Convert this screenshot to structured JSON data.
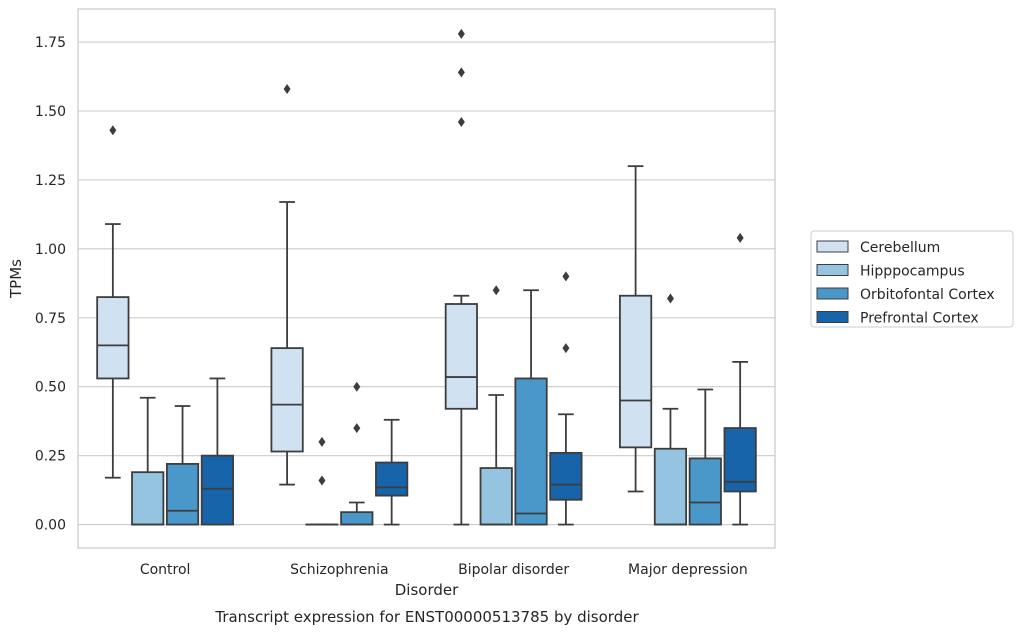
{
  "caption": "Transcript expression for ENST00000513785 by disorder",
  "chart_data": {
    "type": "boxplot",
    "xlabel": "Disorder",
    "ylabel": "TPMs",
    "ylim": [
      -0.085,
      1.87
    ],
    "yticks": [
      0.0,
      0.25,
      0.5,
      0.75,
      1.0,
      1.25,
      1.5,
      1.75
    ],
    "ytick_labels": [
      "0.00",
      "0.25",
      "0.50",
      "0.75",
      "1.00",
      "1.25",
      "1.50",
      "1.75"
    ],
    "grid": "horizontal",
    "legend_position": "right",
    "categories": [
      "Control",
      "Schizophrenia",
      "Bipolar disorder",
      "Major depression"
    ],
    "series": [
      {
        "name": "Cerebellum",
        "color": "#d0e1f2",
        "boxes": [
          {
            "whislo": 0.17,
            "q1": 0.53,
            "med": 0.65,
            "q3": 0.825,
            "whishi": 1.09,
            "fliers": [
              1.43
            ]
          },
          {
            "whislo": 0.145,
            "q1": 0.265,
            "med": 0.435,
            "q3": 0.64,
            "whishi": 1.17,
            "fliers": [
              1.58
            ]
          },
          {
            "whislo": 0.0,
            "q1": 0.42,
            "med": 0.535,
            "q3": 0.8,
            "whishi": 0.83,
            "fliers": [
              1.46,
              1.64,
              1.78
            ]
          },
          {
            "whislo": 0.12,
            "q1": 0.28,
            "med": 0.45,
            "q3": 0.83,
            "whishi": 1.3,
            "fliers": []
          }
        ]
      },
      {
        "name": "Hipppocampus",
        "color": "#94c4df",
        "boxes": [
          {
            "whislo": 0.0,
            "q1": 0.0,
            "med": 0.0,
            "q3": 0.19,
            "whishi": 0.46,
            "fliers": []
          },
          {
            "whislo": 0.0,
            "q1": 0.0,
            "med": 0.0,
            "q3": 0.0,
            "whishi": 0.0,
            "fliers": [
              0.16,
              0.3
            ]
          },
          {
            "whislo": 0.0,
            "q1": 0.0,
            "med": 0.0,
            "q3": 0.205,
            "whishi": 0.47,
            "fliers": [
              0.85
            ]
          },
          {
            "whislo": 0.0,
            "q1": 0.0,
            "med": 0.0,
            "q3": 0.275,
            "whishi": 0.42,
            "fliers": [
              0.82
            ]
          }
        ]
      },
      {
        "name": "Orbitofontal Cortex",
        "color": "#4a98c9",
        "boxes": [
          {
            "whislo": 0.0,
            "q1": 0.0,
            "med": 0.05,
            "q3": 0.22,
            "whishi": 0.43,
            "fliers": []
          },
          {
            "whislo": 0.0,
            "q1": 0.0,
            "med": 0.0,
            "q3": 0.045,
            "whishi": 0.08,
            "fliers": [
              0.35,
              0.5
            ]
          },
          {
            "whislo": 0.0,
            "q1": 0.0,
            "med": 0.04,
            "q3": 0.53,
            "whishi": 0.85,
            "fliers": []
          },
          {
            "whislo": 0.0,
            "q1": 0.0,
            "med": 0.08,
            "q3": 0.24,
            "whishi": 0.49,
            "fliers": []
          }
        ]
      },
      {
        "name": "Prefrontal Cortex",
        "color": "#1764ab",
        "boxes": [
          {
            "whislo": 0.0,
            "q1": 0.0,
            "med": 0.13,
            "q3": 0.25,
            "whishi": 0.53,
            "fliers": []
          },
          {
            "whislo": 0.0,
            "q1": 0.105,
            "med": 0.135,
            "q3": 0.225,
            "whishi": 0.38,
            "fliers": []
          },
          {
            "whislo": 0.0,
            "q1": 0.09,
            "med": 0.145,
            "q3": 0.26,
            "whishi": 0.4,
            "fliers": [
              0.64,
              0.9
            ]
          },
          {
            "whislo": 0.0,
            "q1": 0.12,
            "med": 0.155,
            "q3": 0.35,
            "whishi": 0.59,
            "fliers": [
              1.04
            ]
          }
        ]
      }
    ]
  }
}
